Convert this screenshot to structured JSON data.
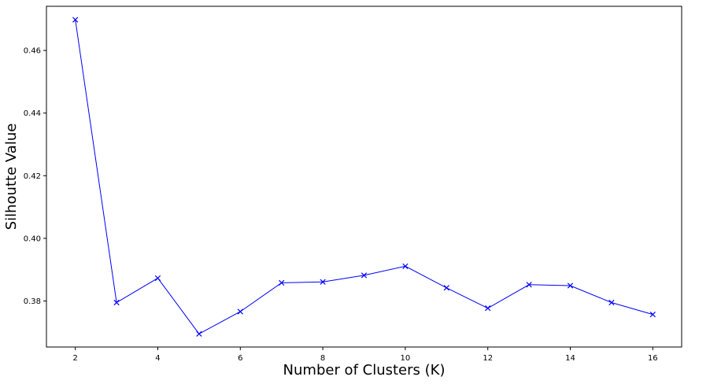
{
  "chart_data": {
    "type": "line",
    "title": "",
    "xlabel": "Number of Clusters (K)",
    "ylabel": "Silhoutte Value",
    "x": [
      2,
      3,
      4,
      5,
      6,
      7,
      8,
      9,
      10,
      11,
      12,
      13,
      14,
      15,
      16
    ],
    "series": [
      {
        "marker": "x",
        "color": "#0000ff",
        "values": [
          0.4698,
          0.3795,
          0.3873,
          0.3695,
          0.3766,
          0.3858,
          0.3861,
          0.3882,
          0.3911,
          0.3842,
          0.3777,
          0.3852,
          0.3849,
          0.3795,
          0.3757
        ]
      }
    ],
    "xlim": [
      1.3,
      16.7
    ],
    "ylim": [
      0.3653,
      0.4741
    ],
    "xticks": [
      2,
      4,
      6,
      8,
      10,
      12,
      14,
      16
    ],
    "yticks": [
      0.38,
      0.4,
      0.42,
      0.44,
      0.46
    ],
    "ytick_labels": [
      "0.38",
      "0.40",
      "0.42",
      "0.44",
      "0.46"
    ],
    "grid": false,
    "legend": "none"
  }
}
